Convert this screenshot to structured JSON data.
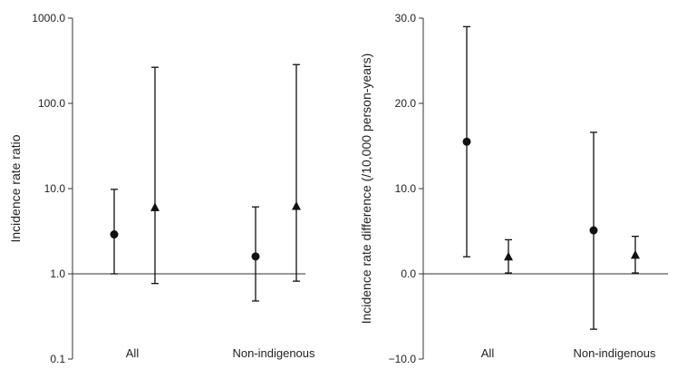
{
  "chart_data": [
    {
      "type": "scatter",
      "subtype": "point-with-error-bars",
      "title": "",
      "ylabel": "Incidence rate ratio",
      "yscale": "log",
      "ylim": [
        0.1,
        1000
      ],
      "yticks": [
        "0.1",
        "1.0",
        "10.0",
        "100.0",
        "1000.0"
      ],
      "reference_line": 1,
      "categories": [
        "All",
        "Non-indigenous"
      ],
      "series": [
        {
          "marker": "circle",
          "values": [
            2.9,
            1.6
          ],
          "lower": [
            1.0,
            0.48
          ],
          "upper": [
            9.8,
            6.1
          ]
        },
        {
          "marker": "triangle",
          "values": [
            6.0,
            6.2
          ],
          "lower": [
            0.77,
            0.82
          ],
          "upper": [
            265,
            285
          ]
        }
      ],
      "grid": false,
      "legend": "none"
    },
    {
      "type": "scatter",
      "subtype": "point-with-error-bars",
      "title": "",
      "ylabel": "Incidence rate difference (/10,000 person-years)",
      "yscale": "linear",
      "ylim": [
        -10,
        30
      ],
      "yticks": [
        "−10.0",
        "0.0",
        "10.0",
        "20.0",
        "30.0"
      ],
      "reference_line": 0,
      "categories": [
        "All",
        "Non-indigenous"
      ],
      "series": [
        {
          "marker": "circle",
          "values": [
            15.5,
            5.1
          ],
          "lower": [
            2.0,
            -6.5
          ],
          "upper": [
            29.0,
            16.6
          ]
        },
        {
          "marker": "triangle",
          "values": [
            2.0,
            2.2
          ],
          "lower": [
            0.1,
            0.1
          ],
          "upper": [
            4.0,
            4.4
          ]
        }
      ],
      "grid": false,
      "legend": "none"
    }
  ]
}
